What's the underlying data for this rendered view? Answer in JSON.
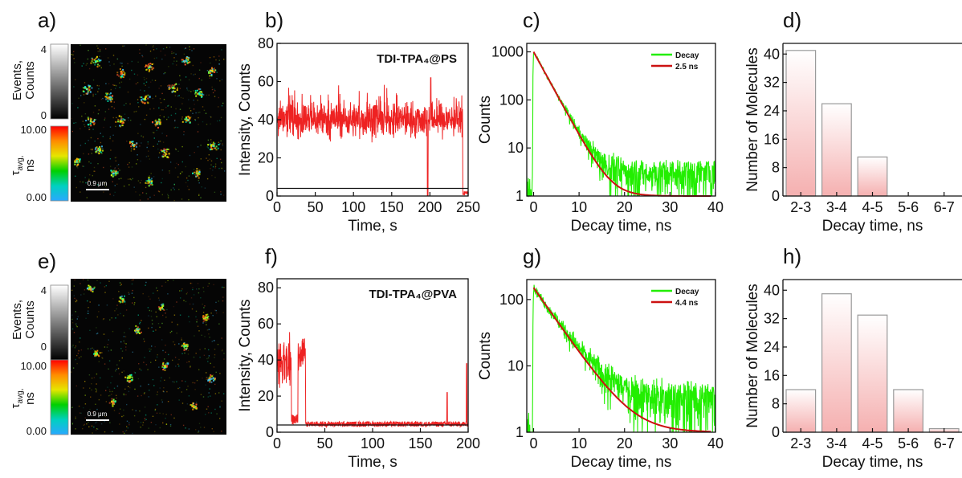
{
  "images": {
    "a": {
      "label": "a)",
      "scalebar": "0.9 μm"
    },
    "e": {
      "label": "e)",
      "scalebar": "0.9 μm"
    }
  },
  "colorbars": {
    "events_label_1": "Events,",
    "events_label_2": "Counts",
    "events_max": "4",
    "events_min": "0",
    "tau_label_1": "τ",
    "tau_label_sub": "avg,",
    "tau_label_2": "ns",
    "tau_max": "10.00",
    "tau_min": "0.00"
  },
  "colors": {
    "trace": "#ee2222",
    "decay": "#22ee00",
    "fit": "#cc1111",
    "bar_top": "#f6b6b6",
    "bar_bottom": "#ffffff"
  },
  "chart_data": [
    {
      "id": "b",
      "label": "b)",
      "type": "line",
      "title": "TDI-TPA₄@PS",
      "xlabel": "Time, s",
      "ylabel": "Intensity, Counts",
      "xlim": [
        0,
        250
      ],
      "ylim": [
        0,
        80
      ],
      "xticks": [
        0,
        50,
        100,
        150,
        200,
        250
      ],
      "yticks": [
        0,
        20,
        40,
        60,
        80
      ],
      "series": [
        {
          "values": "photon count trace: mean ≈ 40 counts (range ≈ 22–62) from 0 s to ≈ 243 s, then drops to ≈ 0; isolated dip near 197 s"
        }
      ],
      "threshold": 4
    },
    {
      "id": "c",
      "label": "c)",
      "type": "line",
      "xlabel": "Decay time, ns",
      "ylabel": "Counts",
      "xlim": [
        -1.5,
        40
      ],
      "ylim": [
        1,
        1500
      ],
      "yscale": "log",
      "xticks": [
        0,
        10,
        20,
        30,
        40
      ],
      "yticks": [
        1,
        10,
        100,
        1000
      ],
      "series": [
        {
          "name": "Decay",
          "values": "peak ≈ 1000 counts at 0 ns, mono-exponential fall, noise floor ≈ 1–5 counts beyond ≈ 15 ns"
        },
        {
          "name": "2.5 ns",
          "tau": 2.5,
          "amplitude": 1000,
          "baseline": 1
        }
      ],
      "legend": "top-right"
    },
    {
      "id": "d",
      "label": "d)",
      "type": "bar",
      "xlabel": "Decay time, ns",
      "ylabel": "Number of Molecules",
      "categories": [
        "2-3",
        "3-4",
        "4-5",
        "5-6",
        "6-7"
      ],
      "values": [
        41,
        26,
        11,
        0,
        0
      ],
      "ylim": [
        0,
        43
      ],
      "yticks": [
        0,
        8,
        16,
        24,
        32,
        40
      ]
    },
    {
      "id": "f",
      "label": "f)",
      "type": "line",
      "title": "TDI-TPA₄@PVA",
      "xlabel": "Time, s",
      "ylabel": "Intensity, Counts",
      "xlim": [
        0,
        200
      ],
      "ylim": [
        0,
        85
      ],
      "xticks": [
        0,
        50,
        100,
        150,
        200
      ],
      "yticks": [
        0,
        20,
        40,
        60,
        80
      ],
      "series": [
        {
          "values": "blinking trace: bursts up to ≈ 70 counts between 0–15 s and 22–30 s, background ≈ 3 counts afterwards, spikes near 178 s and 198 s"
        }
      ],
      "threshold": 4
    },
    {
      "id": "g",
      "label": "g)",
      "type": "line",
      "xlabel": "Decay time, ns",
      "ylabel": "Counts",
      "xlim": [
        -1.5,
        40
      ],
      "ylim": [
        1,
        200
      ],
      "yscale": "log",
      "xticks": [
        0,
        10,
        20,
        30,
        40
      ],
      "yticks": [
        1,
        10,
        100
      ],
      "series": [
        {
          "name": "Decay",
          "values": "peak ≈ 150 counts at 0 ns, mono-exponential fall, noise floor ≈ 1–5 counts beyond ≈ 20 ns"
        },
        {
          "name": "4.4 ns",
          "tau": 4.4,
          "amplitude": 150,
          "baseline": 1
        }
      ],
      "legend": "top-right"
    },
    {
      "id": "h",
      "label": "h)",
      "type": "bar",
      "xlabel": "Decay time, ns",
      "ylabel": "Number of Molecules",
      "categories": [
        "2-3",
        "3-4",
        "4-5",
        "5-6",
        "6-7"
      ],
      "values": [
        12,
        39,
        33,
        12,
        1
      ],
      "ylim": [
        0,
        43
      ],
      "yticks": [
        0,
        8,
        16,
        24,
        32,
        40
      ]
    }
  ]
}
